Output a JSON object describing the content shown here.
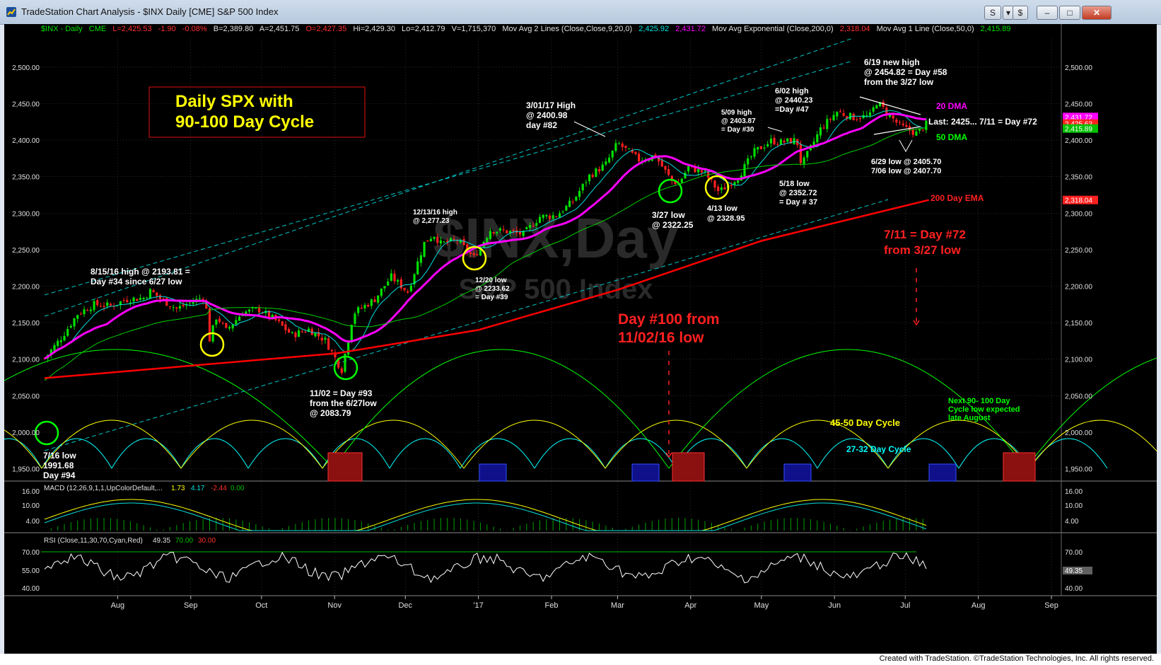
{
  "window": {
    "title": "TradeStation Chart Analysis - $INX Daily [CME] S&P 500 Index",
    "buttons": {
      "s": "S",
      "trade": "$",
      "menu": "▾",
      "minimize": "–",
      "restore": "□",
      "close": "✕"
    }
  },
  "footer": "Created with TradeStation. ©TradeStation Technologies, Inc. All rights reserved.",
  "header": {
    "symbol": "$INX - Daily",
    "exchange": "CME",
    "last": "L=2,425.53",
    "change": "-1.90",
    "pct": "-0.08%",
    "bid": "B=2,389.80",
    "ask": "A=2,451.75",
    "open": "O=2,427.35",
    "high": "Hi=2,429.30",
    "low": "Lo=2,412.79",
    "vol": "V=1,715,370",
    "ma2": "Mov Avg 2 Lines (Close,Close,9,20,0)",
    "ma2_v1": "2,425.92",
    "ma2_v2": "2,431.72",
    "ema": "Mov Avg Exponential (Close,200,0)",
    "ema_v": "2,318.04",
    "ma1": "Mov Avg 1 Line (Close,50,0)",
    "ma1_v": "2,415.89"
  },
  "colors": {
    "up": "#00e000",
    "down": "#ff2020",
    "ma9": "#00e0e0",
    "ma20": "#ff00ff",
    "ma50": "#00d000",
    "ema200": "#ff0000",
    "channel": "#00c8c8",
    "yellow": "#ffff00",
    "green": "#00ff00",
    "cyan": "#00ffff",
    "white": "#ffffff",
    "grid": "#444444",
    "axis_text": "#e0e0e0",
    "red_text": "#ff2020"
  },
  "chart_data": {
    "type": "candlestick",
    "title": "Daily SPX with 90-100 Day Cycle",
    "watermark": [
      "$INX,Day",
      "S&P 500 Index"
    ],
    "x_months": [
      "Aug",
      "Sep",
      "Oct",
      "Nov",
      "Dec",
      "'17",
      "Feb",
      "Mar",
      "Apr",
      "May",
      "Jun",
      "Jul",
      "Aug",
      "Sep"
    ],
    "y_ticks": [
      1950,
      2000,
      2050,
      2100,
      2150,
      2200,
      2250,
      2300,
      2350,
      2400,
      2450,
      2500
    ],
    "y_tick_labels": [
      "1,950.00",
      "2,000.00",
      "2,050.00",
      "2,100.00",
      "2,150.00",
      "2,200.00",
      "2,250.00",
      "2,300.00",
      "2,350.00",
      "2,400.00",
      "2,450.00",
      "2,500.00"
    ],
    "ylim": [
      1930,
      2540
    ],
    "price_path": [
      {
        "date": "2016-07-01",
        "close": 2101
      },
      {
        "date": "2016-07-08",
        "close": 2129
      },
      {
        "date": "2016-07-15",
        "close": 2162
      },
      {
        "date": "2016-07-22",
        "close": 2175
      },
      {
        "date": "2016-07-29",
        "close": 2173
      },
      {
        "date": "2016-08-05",
        "close": 2182
      },
      {
        "date": "2016-08-12",
        "close": 2184
      },
      {
        "date": "2016-08-15",
        "close": 2193.81
      },
      {
        "date": "2016-08-19",
        "close": 2183
      },
      {
        "date": "2016-08-26",
        "close": 2169
      },
      {
        "date": "2016-09-02",
        "close": 2179
      },
      {
        "date": "2016-09-07",
        "close": 2186
      },
      {
        "date": "2016-09-09",
        "close": 2127
      },
      {
        "date": "2016-09-12",
        "close": 2159
      },
      {
        "date": "2016-09-16",
        "close": 2139
      },
      {
        "date": "2016-09-23",
        "close": 2164
      },
      {
        "date": "2016-09-30",
        "close": 2168
      },
      {
        "date": "2016-10-07",
        "close": 2153
      },
      {
        "date": "2016-10-14",
        "close": 2133
      },
      {
        "date": "2016-10-21",
        "close": 2141
      },
      {
        "date": "2016-10-28",
        "close": 2126
      },
      {
        "date": "2016-11-02",
        "close": 2097
      },
      {
        "date": "2016-11-04",
        "close": 2085
      },
      {
        "date": "2016-11-09",
        "close": 2163
      },
      {
        "date": "2016-11-18",
        "close": 2182
      },
      {
        "date": "2016-11-25",
        "close": 2213
      },
      {
        "date": "2016-12-02",
        "close": 2192
      },
      {
        "date": "2016-12-09",
        "close": 2259
      },
      {
        "date": "2016-12-13",
        "close": 2271
      },
      {
        "date": "2016-12-16",
        "close": 2258
      },
      {
        "date": "2016-12-23",
        "close": 2263
      },
      {
        "date": "2016-12-30",
        "close": 2239
      },
      {
        "date": "2017-01-06",
        "close": 2277
      },
      {
        "date": "2017-01-13",
        "close": 2275
      },
      {
        "date": "2017-01-20",
        "close": 2271
      },
      {
        "date": "2017-01-27",
        "close": 2295
      },
      {
        "date": "2017-02-03",
        "close": 2297
      },
      {
        "date": "2017-02-10",
        "close": 2316
      },
      {
        "date": "2017-02-17",
        "close": 2351
      },
      {
        "date": "2017-02-24",
        "close": 2367
      },
      {
        "date": "2017-03-01",
        "close": 2396
      },
      {
        "date": "2017-03-10",
        "close": 2373
      },
      {
        "date": "2017-03-17",
        "close": 2378
      },
      {
        "date": "2017-03-24",
        "close": 2344
      },
      {
        "date": "2017-03-27",
        "close": 2341
      },
      {
        "date": "2017-03-31",
        "close": 2363
      },
      {
        "date": "2017-04-07",
        "close": 2355
      },
      {
        "date": "2017-04-13",
        "close": 2329
      },
      {
        "date": "2017-04-21",
        "close": 2349
      },
      {
        "date": "2017-04-28",
        "close": 2384
      },
      {
        "date": "2017-05-05",
        "close": 2399
      },
      {
        "date": "2017-05-09",
        "close": 2397
      },
      {
        "date": "2017-05-16",
        "close": 2400
      },
      {
        "date": "2017-05-18",
        "close": 2365
      },
      {
        "date": "2017-05-26",
        "close": 2415
      },
      {
        "date": "2017-06-02",
        "close": 2439
      },
      {
        "date": "2017-06-09",
        "close": 2431
      },
      {
        "date": "2017-06-16",
        "close": 2433
      },
      {
        "date": "2017-06-19",
        "close": 2453
      },
      {
        "date": "2017-06-23",
        "close": 2438
      },
      {
        "date": "2017-06-29",
        "close": 2419
      },
      {
        "date": "2017-07-06",
        "close": 2409
      },
      {
        "date": "2017-07-11",
        "close": 2425.53
      }
    ],
    "series": [
      {
        "name": "Mov Avg Exponential (Close,200,0)",
        "last": 2318.04
      },
      {
        "name": "Mov Avg 1 Line (Close,50,0)",
        "last": 2415.89
      },
      {
        "name": "Mov Avg 2 Lines (Close,Close,9,20,0)",
        "last": [
          2425.92,
          2431.72
        ]
      }
    ],
    "price_axis_markers": [
      "2,431.72",
      "2,425.63",
      "2,415.89",
      "2,318.04"
    ],
    "annotations": {
      "a1": [
        "8/15/16 high @ 2193.81 =",
        "Day #34 since 6/27 low"
      ],
      "a2": [
        "11/02 = Day #93",
        "from the 6/27low",
        "@ 2083.79"
      ],
      "a3": [
        "12/13/16 high",
        "@ 2,277.23"
      ],
      "a4": [
        "12/20 low",
        "@ 2233.62",
        "= Day #39"
      ],
      "a5": [
        "3/01/17 High",
        "@ 2400.98",
        "day #82"
      ],
      "a6": [
        "3/27 low",
        "@ 2322.25"
      ],
      "a7": [
        "4/13 low",
        "@ 2328.95"
      ],
      "a8": [
        "5/09 high",
        "@ 2403.87",
        "= Day #30"
      ],
      "a9": [
        "6/02 high",
        "@ 2440.23",
        "=Day #47"
      ],
      "a10": [
        "5/18 low",
        "@ 2352.72",
        "= Day # 37"
      ],
      "a11": [
        "6/19 new high",
        "@ 2454.82 = Day #58",
        "from the 3/27 low"
      ],
      "a12": "Last: 2425... 7/11 = Day #72",
      "a13": [
        "6/29 low @ 2405.70",
        "7/06 low @ 2407.70"
      ],
      "a14": [
        "7/16 low",
        "1991.68",
        "Day #94"
      ],
      "dma20": "20 DMA",
      "dma50": "50 DMA",
      "ema200": "200 Day EMA",
      "red1": [
        "7/11 = Day #72",
        "from 3/27 low"
      ],
      "red2": [
        "Day #100 from",
        "11/02/16 low"
      ],
      "cyc45": "45-50 Day Cycle",
      "cyc27": "27-32 Day Cycle",
      "next": [
        "Next 90- 100 Day",
        "Cycle low expected",
        "late August"
      ]
    },
    "macd": {
      "label": "MACD (12,26,9,1,1,UpColorDefault,...",
      "values": [
        "1.73",
        "4.17",
        "-2.44",
        "0.00"
      ],
      "y_ticks": [
        "16.00",
        "10.00",
        "4.00"
      ]
    },
    "rsi": {
      "label": "RSI (Close,11,30,70,Cyan,Red)",
      "values": [
        "49.35",
        "70.00",
        "30.00"
      ],
      "y_ticks": [
        "70.00",
        "55.00",
        "40.00"
      ],
      "last": "49.35"
    }
  }
}
